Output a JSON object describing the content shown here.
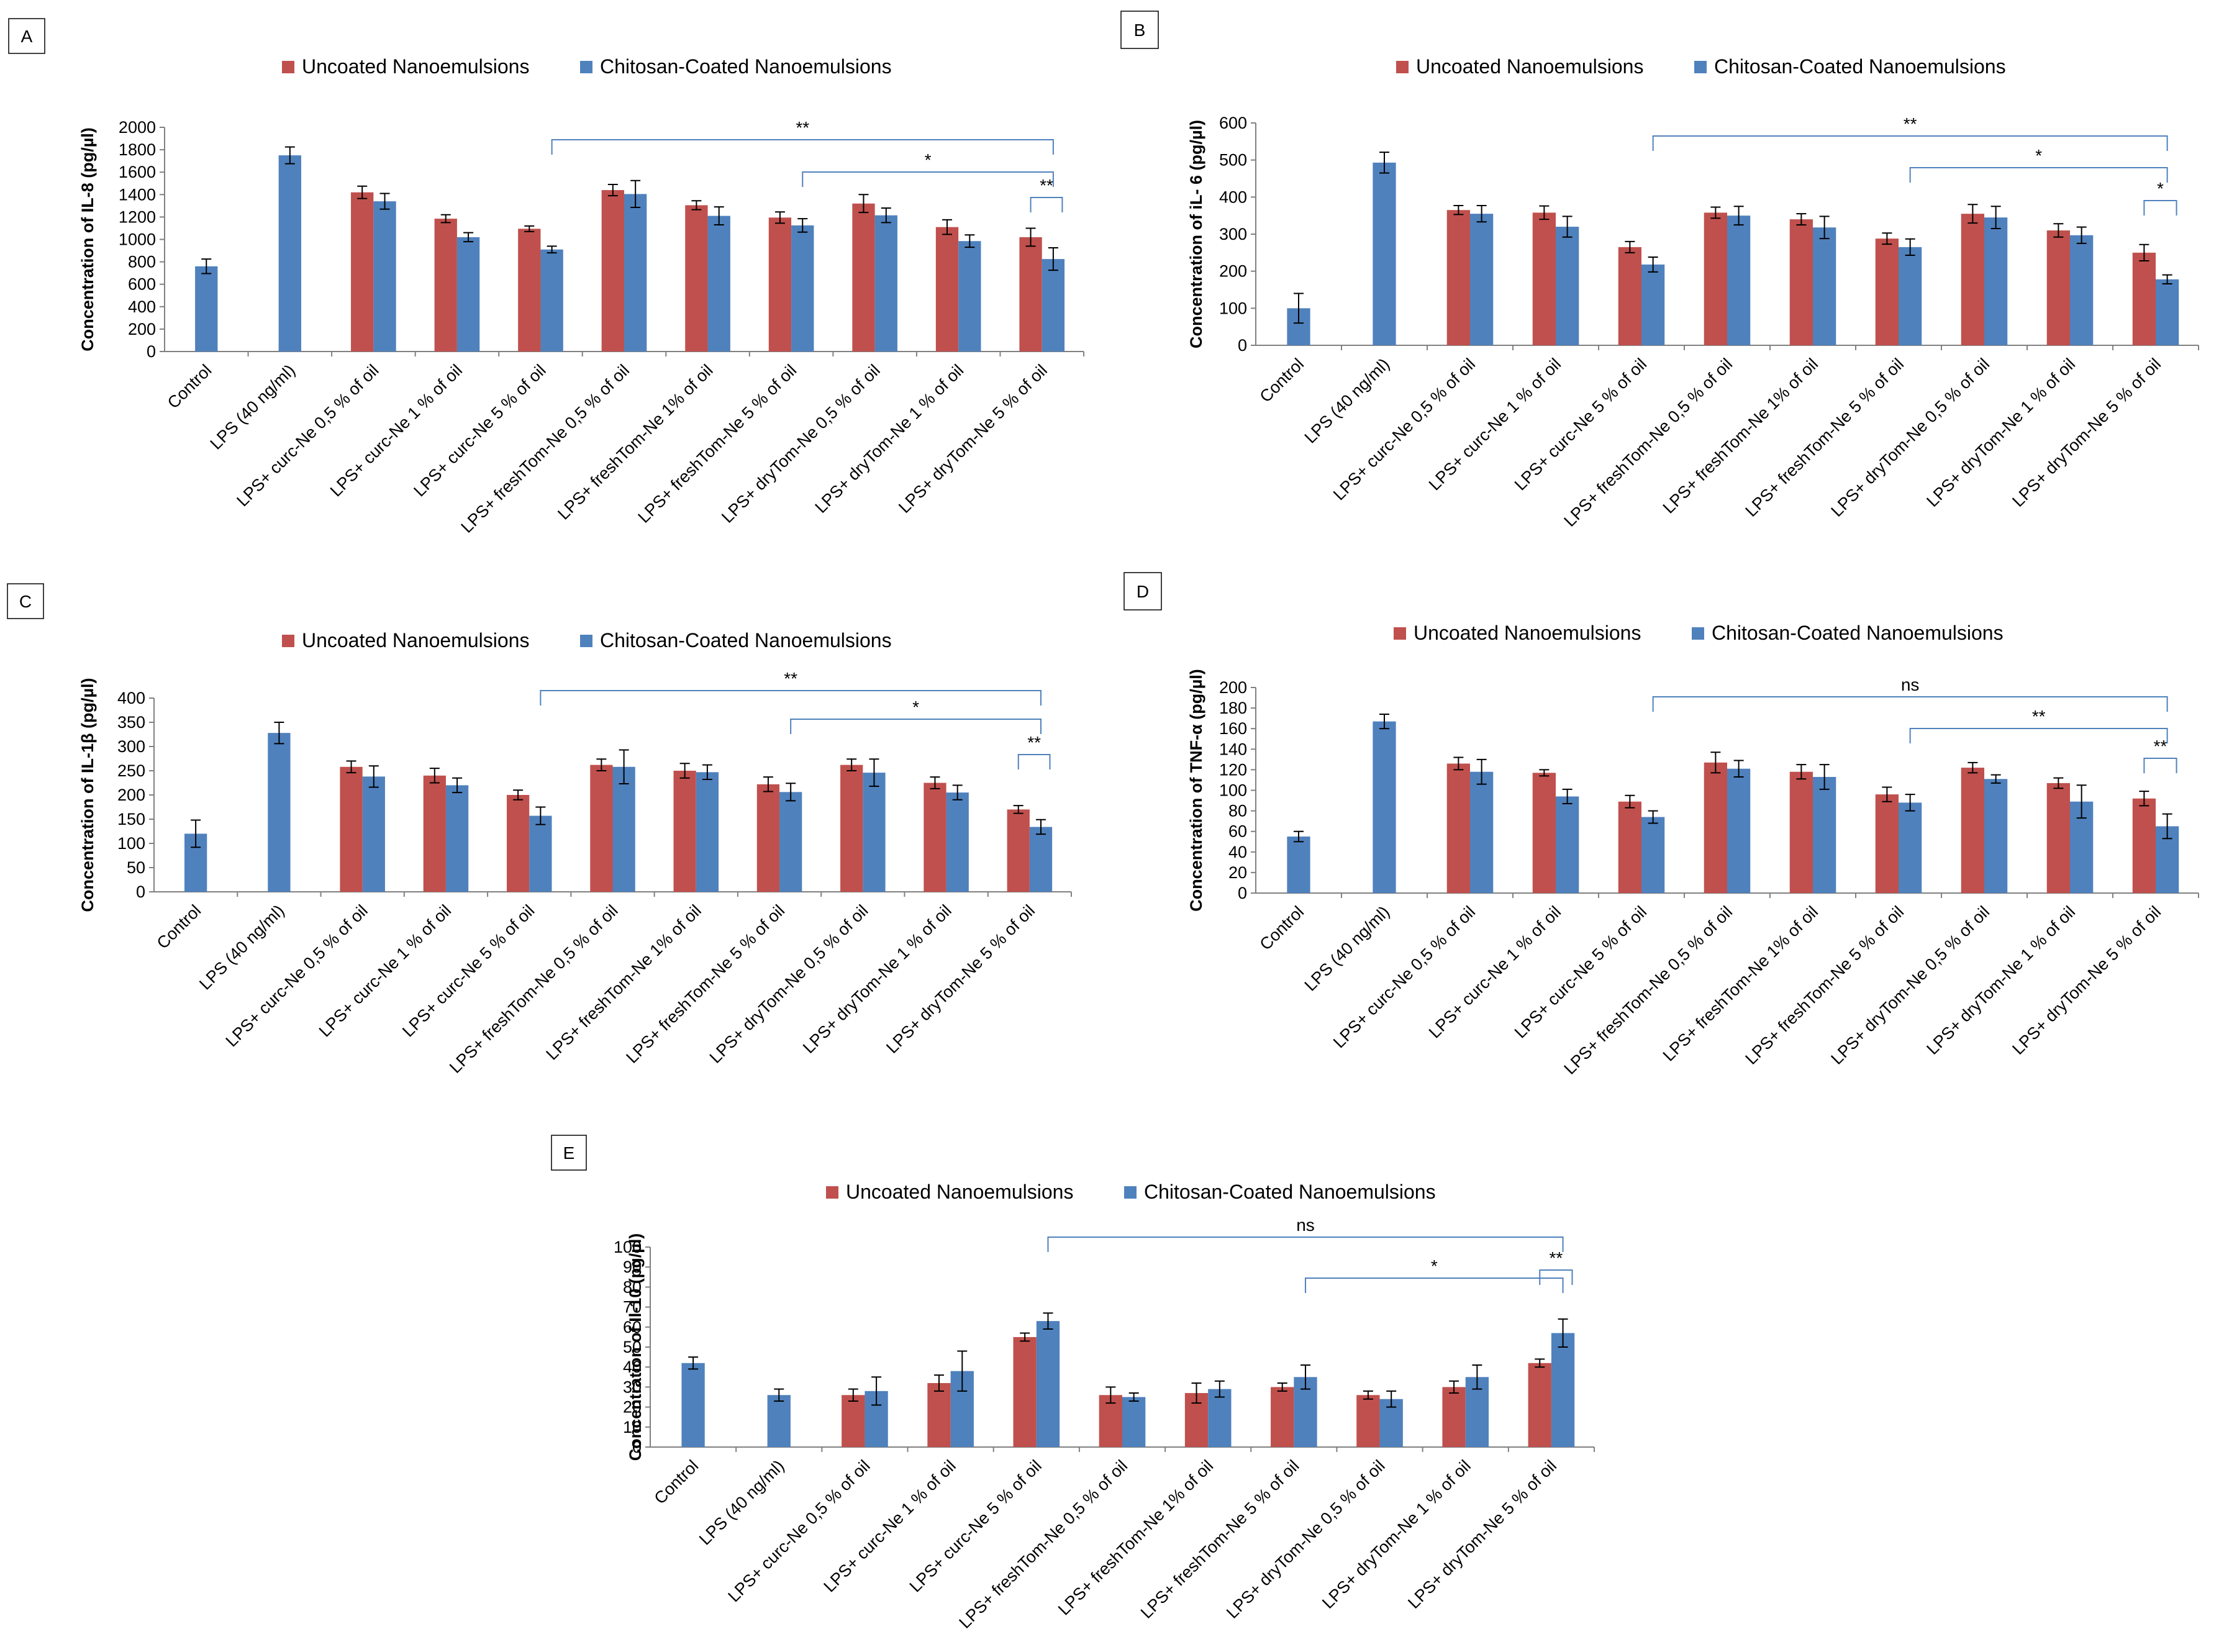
{
  "colors": {
    "uncoated": "#C0504D",
    "coated": "#4F81BD",
    "bracket": "#4F81BD",
    "axis": "#808080",
    "errorbar": "#000000"
  },
  "legend": {
    "uncoated": "Uncoated Nanoemulsions",
    "coated": "Chitosan-Coated Nanoemulsions"
  },
  "categories": [
    "Control",
    "LPS (40 ng/ml)",
    "LPS+ curc-Ne 0,5 % of oil",
    "LPS+ curc-Ne 1 % of oil",
    "LPS+ curc-Ne 5 % of oil",
    "LPS+ freshTom-Ne 0,5 % of oil",
    "LPS+ freshTom-Ne 1% of oil",
    "LPS+ freshTom-Ne 5 % of oil",
    "LPS+ dryTom-Ne 0,5 % of oil",
    "LPS+ dryTom-Ne 1 % of oil",
    "LPS+ dryTom-Ne 5 % of oil"
  ],
  "categories_E": [
    "Control",
    "LPS (40 ng/ml)",
    "LPS+ curc-Ne 0,5 % of oil",
    "LPS+ curc-Ne 1 % of oil",
    "LPS+ curc-Ne 5 % of oil",
    "LPS+ freshTom-Ne 0,5 % of oil",
    "LPS+ freshTom-Ne 1% of oil",
    "LPS+ freshTom-Ne 5 % of oil",
    "LPS+ dryTom-Ne 0,5 % of oil",
    "LPS+ dryTom-Ne 1 % of oil",
    "LPS+ dryTom-Ne 5 % of oil"
  ],
  "chart_data": [
    {
      "panel": "A",
      "type": "bar",
      "ylabel": "Concentration of IL-8  (pg/µl)",
      "ylim": [
        0,
        2000
      ],
      "ystep": 200,
      "series": [
        {
          "name": "Uncoated Nanoemulsions",
          "values": [
            null,
            null,
            1420,
            1185,
            1095,
            1440,
            1305,
            1195,
            1320,
            1110,
            1020
          ],
          "errors": [
            0,
            0,
            55,
            35,
            25,
            50,
            40,
            50,
            80,
            65,
            80
          ]
        },
        {
          "name": "Chitosan-Coated Nanoemulsions",
          "values": [
            760,
            1750,
            1340,
            1020,
            910,
            1405,
            1210,
            1125,
            1215,
            985,
            825
          ],
          "errors": [
            0,
            0,
            70,
            40,
            30,
            120,
            80,
            60,
            65,
            55,
            100
          ]
        }
      ],
      "control_error": 65,
      "lps_error": 75,
      "brackets": [
        {
          "label": "**",
          "from": 4,
          "to": 10
        },
        {
          "label": "*",
          "from": 7,
          "to": 10
        },
        {
          "label": "**",
          "from": 10,
          "to": 10
        }
      ]
    },
    {
      "panel": "B",
      "type": "bar",
      "ylabel": "Concentration of  iL- 6  (pg/µl)",
      "ylim": [
        0,
        600
      ],
      "ystep": 100,
      "series": [
        {
          "name": "Uncoated Nanoemulsions",
          "values": [
            null,
            null,
            365,
            358,
            265,
            358,
            340,
            288,
            355,
            310,
            250
          ],
          "errors": [
            0,
            0,
            12,
            18,
            15,
            15,
            15,
            15,
            25,
            18,
            22
          ]
        },
        {
          "name": "Chitosan-Coated Nanoemulsions",
          "values": [
            100,
            493,
            355,
            320,
            218,
            350,
            318,
            265,
            345,
            297,
            178
          ],
          "errors": [
            0,
            0,
            22,
            28,
            20,
            25,
            30,
            22,
            30,
            22,
            12
          ]
        }
      ],
      "control_error": 40,
      "lps_error": 28,
      "brackets": [
        {
          "label": "**",
          "from": 4,
          "to": 10
        },
        {
          "label": "*",
          "from": 7,
          "to": 10
        },
        {
          "label": "*",
          "from": 10,
          "to": 10
        }
      ]
    },
    {
      "panel": "C",
      "type": "bar",
      "ylabel": "Concentration of IL-1β  (pg/µl)",
      "ylim": [
        0,
        400
      ],
      "ystep": 50,
      "series": [
        {
          "name": "Uncoated Nanoemulsions",
          "values": [
            null,
            null,
            258,
            240,
            200,
            262,
            250,
            222,
            262,
            225,
            170
          ],
          "errors": [
            0,
            0,
            12,
            15,
            10,
            12,
            15,
            15,
            12,
            12,
            8
          ]
        },
        {
          "name": "Chitosan-Coated Nanoemulsions",
          "values": [
            120,
            328,
            238,
            220,
            157,
            258,
            247,
            206,
            246,
            205,
            134
          ],
          "errors": [
            0,
            0,
            22,
            15,
            18,
            35,
            15,
            18,
            28,
            15,
            15
          ]
        }
      ],
      "control_error": 28,
      "lps_error": 22,
      "brackets": [
        {
          "label": "**",
          "from": 4,
          "to": 10
        },
        {
          "label": "*",
          "from": 7,
          "to": 10
        },
        {
          "label": "**",
          "from": 10,
          "to": 10
        }
      ]
    },
    {
      "panel": "D",
      "type": "bar",
      "ylabel": "Concentration of TNF-α  (pg/µl)",
      "ylim": [
        0,
        200
      ],
      "ystep": 20,
      "series": [
        {
          "name": "Uncoated Nanoemulsions",
          "values": [
            null,
            null,
            126,
            117,
            89,
            127,
            118,
            96,
            122,
            107,
            92
          ],
          "errors": [
            0,
            0,
            6,
            3,
            6,
            10,
            7,
            7,
            5,
            5,
            7
          ]
        },
        {
          "name": "Chitosan-Coated Nanoemulsions",
          "values": [
            55,
            167,
            118,
            94,
            74,
            121,
            113,
            88,
            111,
            89,
            65
          ],
          "errors": [
            0,
            0,
            12,
            7,
            6,
            8,
            12,
            8,
            4,
            16,
            12
          ]
        }
      ],
      "control_error": 5,
      "lps_error": 7,
      "brackets": [
        {
          "label": "ns",
          "from": 4,
          "to": 10
        },
        {
          "label": "**",
          "from": 7,
          "to": 10
        },
        {
          "label": "**",
          "from": 10,
          "to": 10
        }
      ]
    },
    {
      "panel": "E",
      "type": "bar",
      "ylabel": "Concentration of  Il-10  (pg/µl)",
      "ylim": [
        0,
        100
      ],
      "ystep": 10,
      "series": [
        {
          "name": "Uncoated Nanoemulsions",
          "values": [
            null,
            null,
            26,
            32,
            55,
            26,
            27,
            30,
            26,
            30,
            42
          ],
          "errors": [
            0,
            0,
            3,
            4,
            2,
            4,
            5,
            2,
            2,
            3,
            2
          ]
        },
        {
          "name": "Chitosan-Coated Nanoemulsions",
          "values": [
            42,
            26,
            28,
            38,
            63,
            25,
            29,
            35,
            24,
            35,
            57
          ],
          "errors": [
            0,
            0,
            7,
            10,
            4,
            2,
            4,
            6,
            4,
            6,
            7
          ]
        }
      ],
      "control_error": 3,
      "lps_error": 3,
      "brackets": [
        {
          "label": "ns",
          "from": 4,
          "to": 10
        },
        {
          "label": "*",
          "from": 7,
          "to": 10
        },
        {
          "label": "**",
          "from": 10,
          "to": 10
        }
      ]
    }
  ]
}
